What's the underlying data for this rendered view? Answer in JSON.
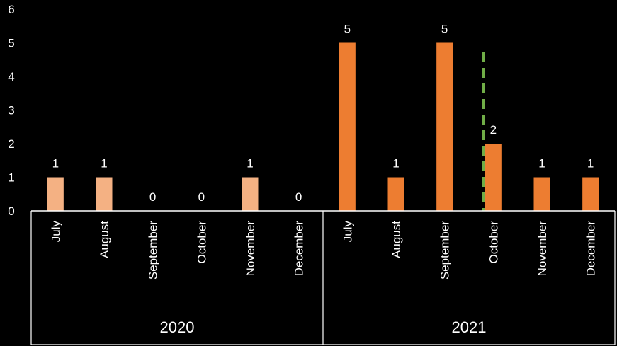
{
  "chart_data": {
    "type": "bar",
    "title": "",
    "xlabel": "",
    "ylabel": "",
    "ylim": [
      0,
      6
    ],
    "yticks": [
      "0",
      "1",
      "2",
      "3",
      "4",
      "5",
      "6"
    ],
    "grid": false,
    "groups": [
      {
        "label": "2020",
        "color": "#F4B183",
        "categories": [
          "July",
          "August",
          "September",
          "October",
          "November",
          "December"
        ],
        "values": [
          1,
          1,
          0,
          0,
          1,
          0
        ]
      },
      {
        "label": "2021",
        "color": "#ED7D31",
        "categories": [
          "July",
          "August",
          "September",
          "October",
          "November",
          "December"
        ],
        "values": [
          5,
          1,
          5,
          2,
          1,
          1
        ]
      }
    ],
    "marker": {
      "type": "vertical-dashed-line",
      "group_index": 1,
      "category": "October",
      "color": "#70AD47"
    }
  }
}
